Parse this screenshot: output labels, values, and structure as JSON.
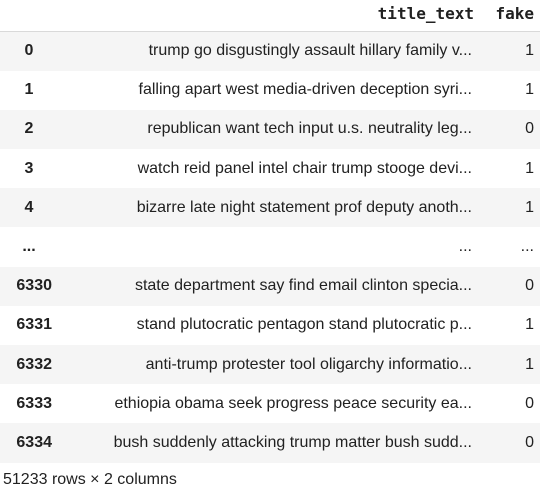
{
  "dataframe": {
    "columns": [
      "",
      "title_text",
      "fake"
    ],
    "rows": [
      {
        "index": "0",
        "title_text": "trump go disgustingly assault hillary family v...",
        "fake": "1"
      },
      {
        "index": "1",
        "title_text": "falling apart west media-driven deception syri...",
        "fake": "1"
      },
      {
        "index": "2",
        "title_text": "republican want tech input u.s. neutrality leg...",
        "fake": "0"
      },
      {
        "index": "3",
        "title_text": "watch reid panel intel chair trump stooge devi...",
        "fake": "1"
      },
      {
        "index": "4",
        "title_text": "bizarre late night statement prof deputy anoth...",
        "fake": "1"
      },
      {
        "index": "...",
        "title_text": "...",
        "fake": "..."
      },
      {
        "index": "6330",
        "title_text": "state department say find email clinton specia...",
        "fake": "0"
      },
      {
        "index": "6331",
        "title_text": "stand plutocratic pentagon stand plutocratic p...",
        "fake": "1"
      },
      {
        "index": "6332",
        "title_text": "anti-trump protester tool oligarchy informatio...",
        "fake": "1"
      },
      {
        "index": "6333",
        "title_text": "ethiopia obama seek progress peace security ea...",
        "fake": "0"
      },
      {
        "index": "6334",
        "title_text": "bush suddenly attacking trump matter bush sudd...",
        "fake": "0"
      }
    ],
    "footer": "51233 rows × 2 columns"
  }
}
